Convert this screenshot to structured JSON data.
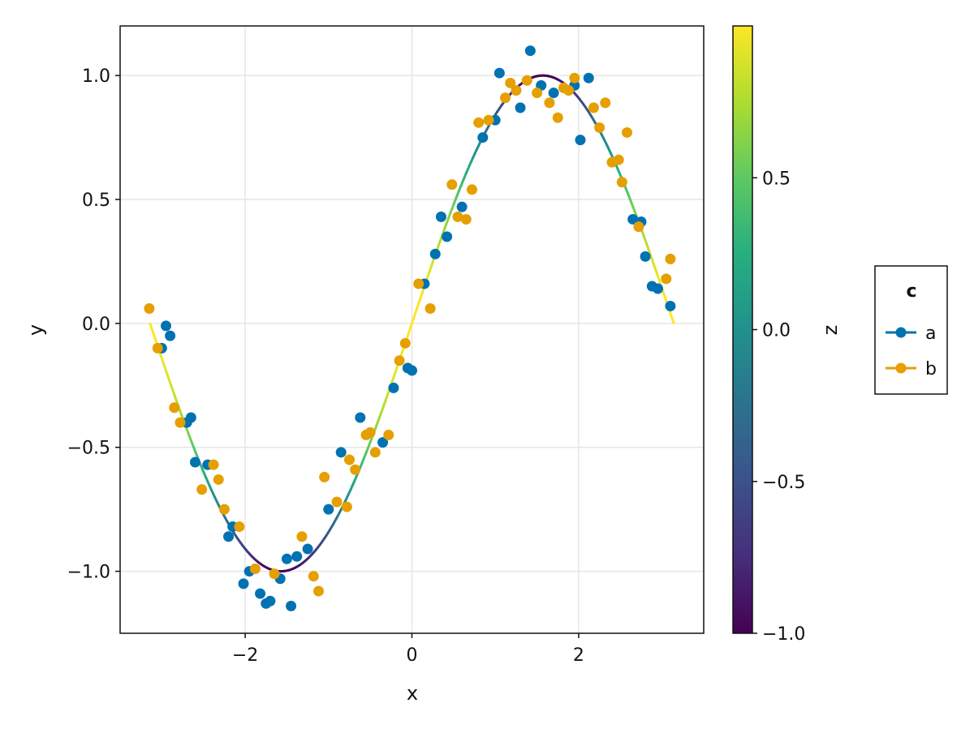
{
  "chart_data": {
    "type": "scatter",
    "xlabel": "x",
    "ylabel": "y",
    "xlim": [
      -3.5,
      3.5
    ],
    "ylim": [
      -1.25,
      1.2
    ],
    "xticks": [
      -2,
      0,
      2
    ],
    "xtick_labels": [
      "−2",
      "0",
      "2"
    ],
    "yticks": [
      -1.0,
      -0.5,
      0.0,
      0.5,
      1.0
    ],
    "ytick_labels": [
      "−1.0",
      "−0.5",
      "0.0",
      "0.5",
      "1.0"
    ],
    "grid": true,
    "line": {
      "function": "sin(x)",
      "x_range": [
        -3.14,
        3.14
      ],
      "color_by": "z",
      "z_relation": "cos(2x)"
    },
    "colorbar": {
      "label": "z",
      "range": [
        -1.0,
        1.0
      ],
      "colormap": "viridis",
      "ticks": [
        -1.0,
        -0.5,
        0.0,
        0.5
      ],
      "tick_labels": [
        "−1.0",
        "−0.5",
        "0.0",
        "0.5"
      ]
    },
    "legend": {
      "title": "c",
      "placement": "right",
      "entries": [
        {
          "name": "a",
          "color": "#0072b2"
        },
        {
          "name": "b",
          "color": "#e69f00"
        }
      ]
    },
    "series": [
      {
        "name": "a",
        "color": "#0072b2",
        "points": [
          [
            -3.0,
            -0.1
          ],
          [
            -2.95,
            -0.01
          ],
          [
            -2.9,
            -0.05
          ],
          [
            -2.7,
            -0.4
          ],
          [
            -2.65,
            -0.38
          ],
          [
            -2.6,
            -0.56
          ],
          [
            -2.45,
            -0.57
          ],
          [
            -2.2,
            -0.86
          ],
          [
            -2.15,
            -0.82
          ],
          [
            -2.02,
            -1.05
          ],
          [
            -1.95,
            -1.0
          ],
          [
            -1.82,
            -1.09
          ],
          [
            -1.75,
            -1.13
          ],
          [
            -1.7,
            -1.12
          ],
          [
            -1.58,
            -1.03
          ],
          [
            -1.5,
            -0.95
          ],
          [
            -1.45,
            -1.14
          ],
          [
            -1.38,
            -0.94
          ],
          [
            -1.25,
            -0.91
          ],
          [
            -1.0,
            -0.75
          ],
          [
            -0.85,
            -0.52
          ],
          [
            -0.62,
            -0.38
          ],
          [
            -0.35,
            -0.48
          ],
          [
            -0.22,
            -0.26
          ],
          [
            -0.05,
            -0.18
          ],
          [
            0.0,
            -0.19
          ],
          [
            0.15,
            0.16
          ],
          [
            0.28,
            0.28
          ],
          [
            0.35,
            0.43
          ],
          [
            0.42,
            0.35
          ],
          [
            0.6,
            0.47
          ],
          [
            0.85,
            0.75
          ],
          [
            1.0,
            0.82
          ],
          [
            1.05,
            1.01
          ],
          [
            1.3,
            0.87
          ],
          [
            1.42,
            1.1
          ],
          [
            1.55,
            0.96
          ],
          [
            1.7,
            0.93
          ],
          [
            1.95,
            0.96
          ],
          [
            2.02,
            0.74
          ],
          [
            2.12,
            0.99
          ],
          [
            2.65,
            0.42
          ],
          [
            2.75,
            0.41
          ],
          [
            2.8,
            0.27
          ],
          [
            2.88,
            0.15
          ],
          [
            2.95,
            0.14
          ],
          [
            3.1,
            0.07
          ]
        ]
      },
      {
        "name": "b",
        "color": "#e69f00",
        "points": [
          [
            -3.15,
            0.06
          ],
          [
            -3.05,
            -0.1
          ],
          [
            -2.85,
            -0.34
          ],
          [
            -2.78,
            -0.4
          ],
          [
            -2.52,
            -0.67
          ],
          [
            -2.38,
            -0.57
          ],
          [
            -2.32,
            -0.63
          ],
          [
            -2.25,
            -0.75
          ],
          [
            -2.07,
            -0.82
          ],
          [
            -1.88,
            -0.99
          ],
          [
            -1.65,
            -1.01
          ],
          [
            -1.32,
            -0.86
          ],
          [
            -1.18,
            -1.02
          ],
          [
            -1.12,
            -1.08
          ],
          [
            -1.05,
            -0.62
          ],
          [
            -0.9,
            -0.72
          ],
          [
            -0.78,
            -0.74
          ],
          [
            -0.75,
            -0.55
          ],
          [
            -0.68,
            -0.59
          ],
          [
            -0.55,
            -0.45
          ],
          [
            -0.5,
            -0.44
          ],
          [
            -0.44,
            -0.52
          ],
          [
            -0.28,
            -0.45
          ],
          [
            -0.15,
            -0.15
          ],
          [
            -0.08,
            -0.08
          ],
          [
            0.08,
            0.16
          ],
          [
            0.22,
            0.06
          ],
          [
            0.48,
            0.56
          ],
          [
            0.55,
            0.43
          ],
          [
            0.65,
            0.42
          ],
          [
            0.72,
            0.54
          ],
          [
            0.8,
            0.81
          ],
          [
            0.92,
            0.82
          ],
          [
            1.12,
            0.91
          ],
          [
            1.18,
            0.97
          ],
          [
            1.25,
            0.94
          ],
          [
            1.38,
            0.98
          ],
          [
            1.5,
            0.93
          ],
          [
            1.65,
            0.89
          ],
          [
            1.75,
            0.83
          ],
          [
            1.82,
            0.95
          ],
          [
            1.88,
            0.94
          ],
          [
            1.95,
            0.99
          ],
          [
            2.18,
            0.87
          ],
          [
            2.25,
            0.79
          ],
          [
            2.32,
            0.89
          ],
          [
            2.4,
            0.65
          ],
          [
            2.48,
            0.66
          ],
          [
            2.52,
            0.57
          ],
          [
            2.58,
            0.77
          ],
          [
            2.72,
            0.39
          ],
          [
            3.05,
            0.18
          ],
          [
            3.1,
            0.26
          ]
        ]
      }
    ]
  }
}
